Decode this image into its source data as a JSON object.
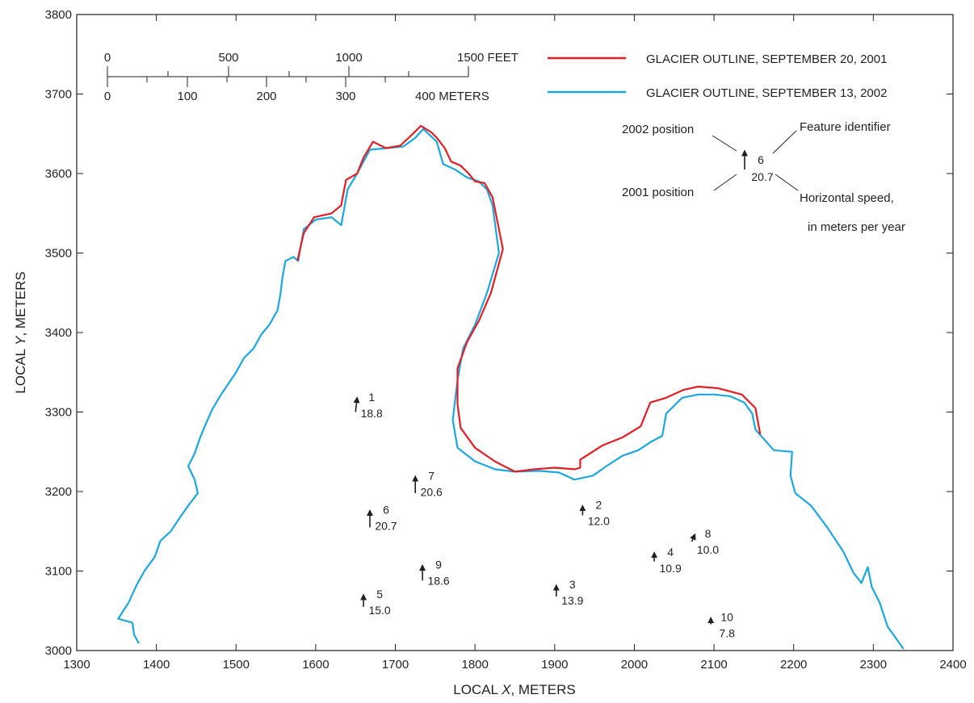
{
  "chart_data": {
    "type": "map",
    "xlabel_pre": "LOCAL ",
    "xlabel_var": "X",
    "xlabel_post": ", METERS",
    "ylabel_pre": "LOCAL ",
    "ylabel_var": "Y",
    "ylabel_post": ", METERS",
    "xlim": [
      1300,
      2400
    ],
    "ylim": [
      3000,
      3800
    ],
    "xticks": [
      "1300",
      "1400",
      "1500",
      "1600",
      "1700",
      "1800",
      "1900",
      "2000",
      "2100",
      "2200",
      "2300",
      "2400"
    ],
    "yticks": [
      "3000",
      "3100",
      "3200",
      "3300",
      "3400",
      "3500",
      "3600",
      "3700",
      "3800"
    ],
    "grid": false,
    "legend": {
      "placement": "top-right",
      "entries": [
        {
          "label": "GLACIER OUTLINE, SEPTEMBER 20, 2001",
          "color": "#e31f26"
        },
        {
          "label": "GLACIER OUTLINE, SEPTEMBER 13, 2002",
          "color": "#1ca7e0"
        }
      ]
    },
    "scale_bar": {
      "feet_labels": [
        "0",
        "500",
        "1000",
        "1500 FEET"
      ],
      "meter_labels": [
        "0",
        "100",
        "200",
        "300",
        "400 METERS"
      ]
    },
    "explanation": {
      "id": "6",
      "speed": "20.7",
      "label_2002": "2002 position",
      "label_2001": "2001 position",
      "label_feature": "Feature identifier",
      "label_speed_1": "Horizontal speed,",
      "label_speed_2": "in meters per year"
    },
    "outline_2001": [
      [
        1577,
        3490
      ],
      [
        1585,
        3525
      ],
      [
        1598,
        3545
      ],
      [
        1620,
        3550
      ],
      [
        1632,
        3560
      ],
      [
        1638,
        3592
      ],
      [
        1652,
        3600
      ],
      [
        1660,
        3620
      ],
      [
        1672,
        3640
      ],
      [
        1688,
        3632
      ],
      [
        1706,
        3635
      ],
      [
        1722,
        3650
      ],
      [
        1732,
        3660
      ],
      [
        1745,
        3652
      ],
      [
        1752,
        3645
      ],
      [
        1762,
        3632
      ],
      [
        1770,
        3615
      ],
      [
        1782,
        3610
      ],
      [
        1792,
        3600
      ],
      [
        1800,
        3590
      ],
      [
        1812,
        3588
      ],
      [
        1822,
        3570
      ],
      [
        1835,
        3505
      ],
      [
        1820,
        3450
      ],
      [
        1805,
        3415
      ],
      [
        1790,
        3388
      ],
      [
        1778,
        3355
      ],
      [
        1778,
        3310
      ],
      [
        1782,
        3280
      ],
      [
        1800,
        3255
      ],
      [
        1825,
        3238
      ],
      [
        1850,
        3225
      ],
      [
        1875,
        3228
      ],
      [
        1900,
        3230
      ],
      [
        1925,
        3228
      ],
      [
        1932,
        3230
      ],
      [
        1932,
        3240
      ],
      [
        1960,
        3258
      ],
      [
        1985,
        3268
      ],
      [
        2008,
        3282
      ],
      [
        2020,
        3312
      ],
      [
        2040,
        3318
      ],
      [
        2062,
        3328
      ],
      [
        2080,
        3332
      ],
      [
        2105,
        3330
      ],
      [
        2135,
        3322
      ],
      [
        2152,
        3305
      ],
      [
        2158,
        3272
      ]
    ],
    "outline_2002": [
      [
        1378,
        3009
      ],
      [
        1372,
        3020
      ],
      [
        1370,
        3035
      ],
      [
        1352,
        3040
      ],
      [
        1365,
        3060
      ],
      [
        1375,
        3082
      ],
      [
        1385,
        3100
      ],
      [
        1398,
        3118
      ],
      [
        1405,
        3138
      ],
      [
        1418,
        3150
      ],
      [
        1430,
        3168
      ],
      [
        1442,
        3185
      ],
      [
        1452,
        3198
      ],
      [
        1448,
        3215
      ],
      [
        1440,
        3232
      ],
      [
        1448,
        3248
      ],
      [
        1455,
        3268
      ],
      [
        1462,
        3285
      ],
      [
        1470,
        3303
      ],
      [
        1480,
        3320
      ],
      [
        1490,
        3335
      ],
      [
        1500,
        3350
      ],
      [
        1510,
        3368
      ],
      [
        1522,
        3380
      ],
      [
        1532,
        3398
      ],
      [
        1542,
        3410
      ],
      [
        1552,
        3428
      ],
      [
        1556,
        3450
      ],
      [
        1558,
        3468
      ],
      [
        1562,
        3490
      ],
      [
        1572,
        3495
      ],
      [
        1578,
        3490
      ],
      [
        1585,
        3530
      ],
      [
        1600,
        3542
      ],
      [
        1620,
        3545
      ],
      [
        1632,
        3535
      ],
      [
        1640,
        3580
      ],
      [
        1652,
        3600
      ],
      [
        1668,
        3630
      ],
      [
        1690,
        3632
      ],
      [
        1710,
        3634
      ],
      [
        1725,
        3645
      ],
      [
        1735,
        3656
      ],
      [
        1752,
        3640
      ],
      [
        1760,
        3612
      ],
      [
        1775,
        3605
      ],
      [
        1790,
        3595
      ],
      [
        1805,
        3590
      ],
      [
        1815,
        3580
      ],
      [
        1822,
        3560
      ],
      [
        1830,
        3500
      ],
      [
        1815,
        3450
      ],
      [
        1800,
        3410
      ],
      [
        1785,
        3380
      ],
      [
        1778,
        3340
      ],
      [
        1772,
        3290
      ],
      [
        1778,
        3255
      ],
      [
        1800,
        3238
      ],
      [
        1825,
        3228
      ],
      [
        1850,
        3225
      ],
      [
        1880,
        3226
      ],
      [
        1905,
        3224
      ],
      [
        1925,
        3215
      ],
      [
        1948,
        3220
      ],
      [
        1965,
        3232
      ],
      [
        1985,
        3245
      ],
      [
        2005,
        3252
      ],
      [
        2020,
        3262
      ],
      [
        2035,
        3270
      ],
      [
        2040,
        3298
      ],
      [
        2060,
        3318
      ],
      [
        2080,
        3322
      ],
      [
        2100,
        3322
      ],
      [
        2120,
        3320
      ],
      [
        2138,
        3312
      ],
      [
        2148,
        3298
      ],
      [
        2152,
        3278
      ],
      [
        2175,
        3252
      ],
      [
        2198,
        3250
      ],
      [
        2196,
        3220
      ],
      [
        2202,
        3198
      ],
      [
        2222,
        3182
      ],
      [
        2242,
        3155
      ],
      [
        2262,
        3125
      ],
      [
        2275,
        3098
      ],
      [
        2285,
        3085
      ],
      [
        2293,
        3105
      ],
      [
        2298,
        3080
      ],
      [
        2308,
        3060
      ],
      [
        2318,
        3030
      ],
      [
        2338,
        3002
      ]
    ],
    "points": [
      {
        "id": "1",
        "speed": "18.8",
        "x": 1650,
        "y": 3300,
        "dx": 2,
        "dy": 18
      },
      {
        "id": "2",
        "speed": "12.0",
        "x": 1935,
        "y": 3170,
        "dx": 0,
        "dy": 12
      },
      {
        "id": "3",
        "speed": "13.9",
        "x": 1902,
        "y": 3068,
        "dx": 0,
        "dy": 14
      },
      {
        "id": "4",
        "speed": "10.9",
        "x": 2025,
        "y": 3112,
        "dx": 0,
        "dy": 11
      },
      {
        "id": "5",
        "speed": "15.0",
        "x": 1660,
        "y": 3055,
        "dx": 0,
        "dy": 15
      },
      {
        "id": "6",
        "speed": "20.7",
        "x": 1668,
        "y": 3155,
        "dx": 0,
        "dy": 21
      },
      {
        "id": "7",
        "speed": "20.6",
        "x": 1725,
        "y": 3198,
        "dx": 0,
        "dy": 21
      },
      {
        "id": "8",
        "speed": "10.0",
        "x": 2072,
        "y": 3137,
        "dx": 4,
        "dy": 9
      },
      {
        "id": "9",
        "speed": "18.6",
        "x": 1734,
        "y": 3088,
        "dx": 0,
        "dy": 19
      },
      {
        "id": "10",
        "speed": "7.8",
        "x": 2096,
        "y": 3033,
        "dx": 0,
        "dy": 8
      }
    ]
  }
}
